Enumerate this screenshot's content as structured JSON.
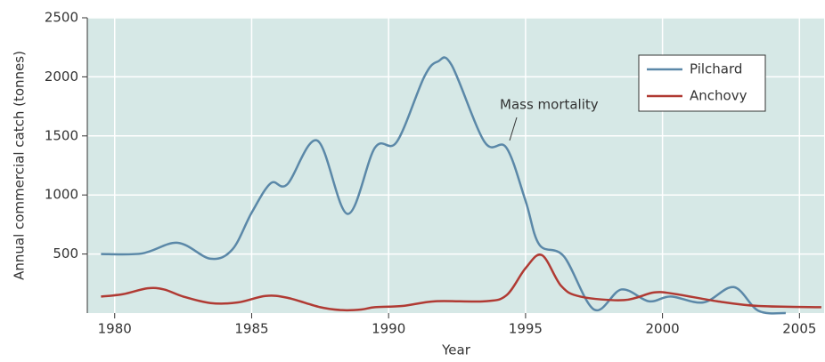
{
  "chart_data": {
    "type": "line",
    "xlabel": "Year",
    "ylabel": "Annual commercial catch (tonnes)",
    "xlim": [
      1979,
      2005.9
    ],
    "xticks": [
      1980,
      1985,
      1990,
      1995,
      2000,
      2005
    ],
    "ylim": [
      0,
      2500
    ],
    "yticks": [
      500,
      1000,
      1500,
      2000,
      2500
    ],
    "grid": true,
    "legend": "upper right",
    "annotation": "Mass mortality",
    "series": [
      {
        "name": "Pilchard",
        "color": "#5b88a8",
        "x": [
          1979.5,
          1981,
          1982.3,
          1983.5,
          1984.3,
          1985,
          1985.7,
          1986.3,
          1987.4,
          1988.5,
          1989.5,
          1990.3,
          1991.3,
          1991.8,
          1992.3,
          1993.5,
          1994.3,
          1995,
          1995.5,
          1996.4,
          1997.5,
          1998.5,
          1999.5,
          2000.3,
          2001.5,
          2002.6,
          2003.5,
          2004.5
        ],
        "values": [
          500,
          505,
          595,
          460,
          540,
          850,
          1100,
          1090,
          1460,
          840,
          1400,
          1450,
          2000,
          2130,
          2100,
          1450,
          1400,
          950,
          580,
          480,
          30,
          200,
          100,
          140,
          90,
          220,
          20,
          0
        ]
      },
      {
        "name": "Anchovy",
        "color": "#b03a33",
        "x": [
          1979.5,
          1980.3,
          1981.2,
          1981.8,
          1982.5,
          1983.5,
          1984.5,
          1985.5,
          1986.3,
          1987.5,
          1988.3,
          1989,
          1989.5,
          1990.5,
          1991.7,
          1993.5,
          1994.3,
          1995,
          1995.6,
          1996.3,
          1997,
          1998.6,
          1999.7,
          2000.5,
          2002,
          2003.5,
          2005.8
        ],
        "values": [
          140,
          160,
          210,
          200,
          140,
          85,
          90,
          145,
          130,
          50,
          25,
          30,
          50,
          60,
          100,
          100,
          150,
          380,
          490,
          230,
          140,
          110,
          175,
          160,
          100,
          60,
          50
        ]
      }
    ]
  }
}
